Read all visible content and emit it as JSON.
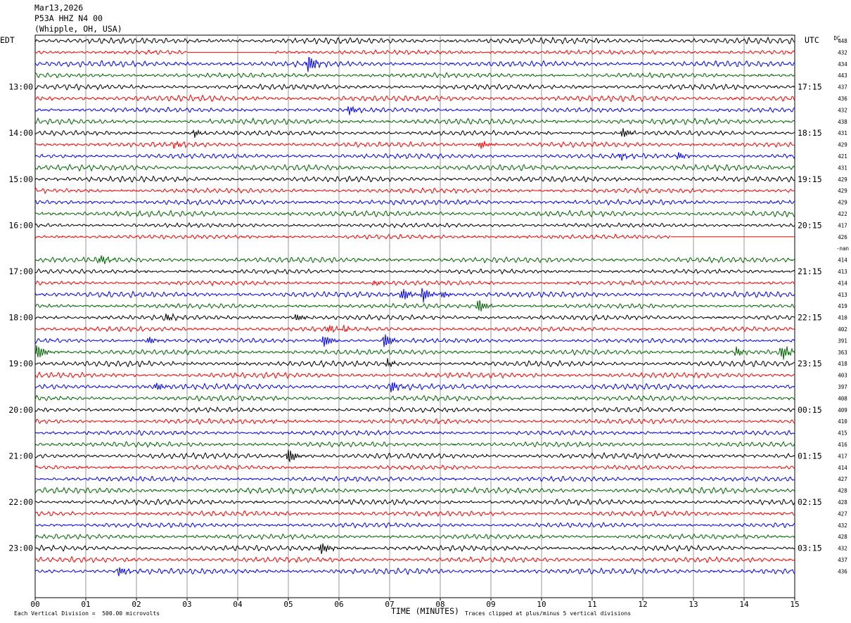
{
  "header": {
    "date": "Mar13,2026",
    "station": "P53A HHZ N4 00",
    "location": "(Whipple, OH, USA)"
  },
  "tz_left": "EDT",
  "tz_right": "UTC",
  "dc_label": "DC",
  "footer": {
    "scale": "Each Vertical Division =  500.00 microvolts",
    "xlabel": "TIME (MINUTES)",
    "clip": "Traces clipped at plus/minus 5 vertical divisions"
  },
  "chart_data": {
    "type": "line",
    "xlabel": "TIME (MINUTES)",
    "x_ticks": [
      "00",
      "01",
      "02",
      "03",
      "04",
      "05",
      "06",
      "07",
      "08",
      "09",
      "10",
      "11",
      "12",
      "13",
      "14",
      "15"
    ],
    "xlim": [
      0,
      15
    ],
    "trace_minutes": 15,
    "colors": [
      "#000000",
      "#ff0000",
      "#0000ff",
      "#006400"
    ],
    "left_hour_labels": [
      "13:00",
      "14:00",
      "15:00",
      "16:00",
      "17:00",
      "18:00",
      "19:00",
      "20:00",
      "21:00",
      "22:00",
      "23:00"
    ],
    "right_hour_labels": [
      "17:15",
      "18:15",
      "19:15",
      "20:15",
      "21:15",
      "22:15",
      "23:15",
      "00:15",
      "01:15",
      "02:15",
      "03:15"
    ],
    "hour_label_first_trace": 4,
    "dc_values": [
      "448",
      "432",
      "434",
      "443",
      "437",
      "436",
      "432",
      "438",
      "431",
      "429",
      "421",
      "431",
      "429",
      "429",
      "429",
      "422",
      "417",
      "426",
      "-nan",
      "414",
      "413",
      "414",
      "413",
      "419",
      "410",
      "402",
      "391",
      "363",
      "418",
      "403",
      "397",
      "408",
      "409",
      "410",
      "415",
      "416",
      "417",
      "414",
      "427",
      "428",
      "428",
      "427",
      "432",
      "428",
      "432",
      "437",
      "436"
    ],
    "gaps": [
      {
        "trace": 1,
        "start_min": 3.0,
        "end_min": 4.6
      },
      {
        "trace": 17,
        "start_min": 12.55,
        "end_min": 15
      },
      {
        "trace": 18,
        "start_min": 0,
        "end_min": 15
      }
    ],
    "events": [
      {
        "trace": 2,
        "minute": 5.4,
        "amp": 3.0
      },
      {
        "trace": 6,
        "minute": 6.2,
        "amp": 1.5
      },
      {
        "trace": 8,
        "minute": 3.15,
        "amp": 1.2
      },
      {
        "trace": 8,
        "minute": 11.6,
        "amp": 1.6
      },
      {
        "trace": 9,
        "minute": 2.75,
        "amp": 1.0
      },
      {
        "trace": 9,
        "minute": 8.8,
        "amp": 1.4
      },
      {
        "trace": 10,
        "minute": 11.55,
        "amp": 1.2
      },
      {
        "trace": 10,
        "minute": 12.7,
        "amp": 1.2
      },
      {
        "trace": 19,
        "minute": 1.3,
        "amp": 1.6
      },
      {
        "trace": 21,
        "minute": 6.7,
        "amp": 0.8
      },
      {
        "trace": 22,
        "minute": 7.25,
        "amp": 2.0
      },
      {
        "trace": 22,
        "minute": 7.65,
        "amp": 2.5
      },
      {
        "trace": 22,
        "minute": 8.05,
        "amp": 1.2
      },
      {
        "trace": 23,
        "minute": 8.75,
        "amp": 2.5
      },
      {
        "trace": 24,
        "minute": 2.6,
        "amp": 1.2
      },
      {
        "trace": 24,
        "minute": 5.15,
        "amp": 1.4
      },
      {
        "trace": 25,
        "minute": 5.8,
        "amp": 1.2
      },
      {
        "trace": 25,
        "minute": 6.1,
        "amp": 1.0
      },
      {
        "trace": 26,
        "minute": 2.25,
        "amp": 1.2
      },
      {
        "trace": 26,
        "minute": 5.7,
        "amp": 2.2
      },
      {
        "trace": 26,
        "minute": 6.9,
        "amp": 2.6
      },
      {
        "trace": 27,
        "minute": 0.05,
        "amp": 2.6
      },
      {
        "trace": 27,
        "minute": 13.85,
        "amp": 1.6
      },
      {
        "trace": 27,
        "minute": 14.75,
        "amp": 2.6
      },
      {
        "trace": 28,
        "minute": 6.95,
        "amp": 1.2
      },
      {
        "trace": 30,
        "minute": 2.4,
        "amp": 1.4
      },
      {
        "trace": 30,
        "minute": 7.05,
        "amp": 2.0
      },
      {
        "trace": 36,
        "minute": 5.0,
        "amp": 2.8
      },
      {
        "trace": 44,
        "minute": 5.65,
        "amp": 2.2
      },
      {
        "trace": 46,
        "minute": 1.65,
        "amp": 1.6
      }
    ]
  }
}
